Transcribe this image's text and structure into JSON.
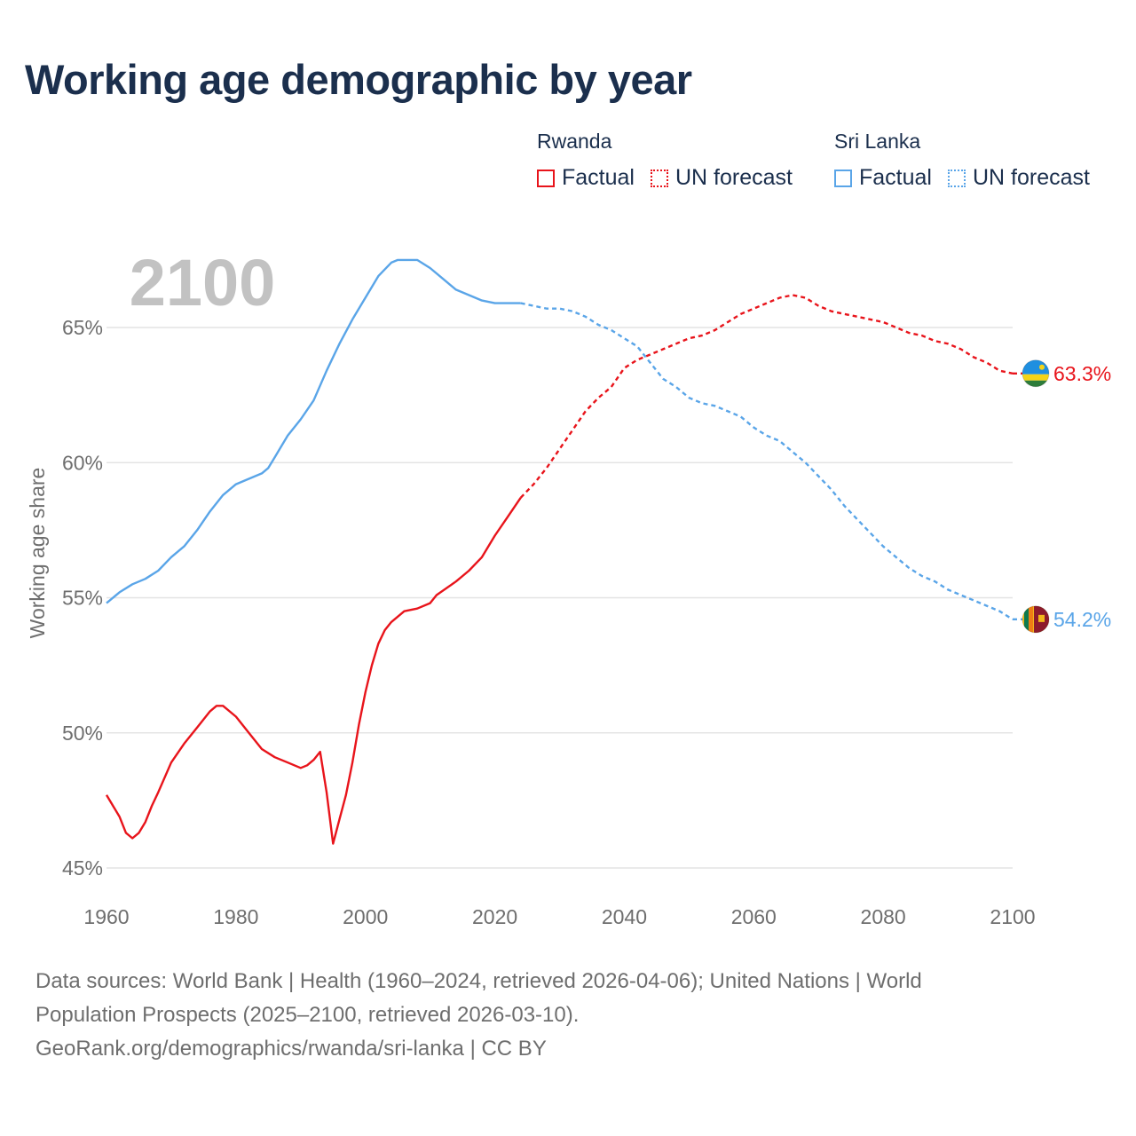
{
  "title": "Working age demographic by year",
  "legend": [
    {
      "country": "Rwanda",
      "color": "#e8141b",
      "items": [
        "Factual",
        "UN forecast"
      ]
    },
    {
      "country": "Sri Lanka",
      "color": "#5aa5e8",
      "items": [
        "Factual",
        "UN forecast"
      ]
    }
  ],
  "chart_data": {
    "type": "line",
    "current_year_label": "2100",
    "xlabel": "",
    "ylabel": "Working age share",
    "xlim": [
      1960,
      2100
    ],
    "ylim": [
      45,
      68
    ],
    "x_ticks": [
      {
        "value": 1960,
        "label": "1960"
      },
      {
        "value": 1980,
        "label": "1980"
      },
      {
        "value": 2000,
        "label": "2000"
      },
      {
        "value": 2020,
        "label": "2020"
      },
      {
        "value": 2040,
        "label": "2040"
      },
      {
        "value": 2060,
        "label": "2060"
      },
      {
        "value": 2080,
        "label": "2080"
      },
      {
        "value": 2100,
        "label": "2100"
      }
    ],
    "y_ticks": [
      {
        "value": 45,
        "label": "45%"
      },
      {
        "value": 50,
        "label": "50%"
      },
      {
        "value": 55,
        "label": "55%"
      },
      {
        "value": 60,
        "label": "60%"
      },
      {
        "value": 65,
        "label": "65%"
      }
    ],
    "factual_end_year": 2024,
    "series": [
      {
        "name": "Rwanda",
        "color": "#e8141b",
        "end_label": "63.3%",
        "points": [
          [
            1960,
            47.7
          ],
          [
            1962,
            46.9
          ],
          [
            1963,
            46.3
          ],
          [
            1964,
            46.1
          ],
          [
            1965,
            46.3
          ],
          [
            1966,
            46.7
          ],
          [
            1967,
            47.3
          ],
          [
            1968,
            47.8
          ],
          [
            1970,
            48.9
          ],
          [
            1972,
            49.6
          ],
          [
            1974,
            50.2
          ],
          [
            1976,
            50.8
          ],
          [
            1977,
            51.0
          ],
          [
            1978,
            51.0
          ],
          [
            1980,
            50.6
          ],
          [
            1982,
            50.0
          ],
          [
            1984,
            49.4
          ],
          [
            1986,
            49.1
          ],
          [
            1988,
            48.9
          ],
          [
            1990,
            48.7
          ],
          [
            1991,
            48.8
          ],
          [
            1992,
            49.0
          ],
          [
            1993,
            49.3
          ],
          [
            1994,
            47.8
          ],
          [
            1995,
            45.9
          ],
          [
            1996,
            46.8
          ],
          [
            1997,
            47.7
          ],
          [
            1998,
            48.9
          ],
          [
            1999,
            50.3
          ],
          [
            2000,
            51.5
          ],
          [
            2001,
            52.5
          ],
          [
            2002,
            53.3
          ],
          [
            2003,
            53.8
          ],
          [
            2004,
            54.1
          ],
          [
            2005,
            54.3
          ],
          [
            2006,
            54.5
          ],
          [
            2008,
            54.6
          ],
          [
            2010,
            54.8
          ],
          [
            2011,
            55.1
          ],
          [
            2014,
            55.6
          ],
          [
            2016,
            56.0
          ],
          [
            2018,
            56.5
          ],
          [
            2020,
            57.3
          ],
          [
            2022,
            58.0
          ],
          [
            2024,
            58.7
          ],
          [
            2026,
            59.2
          ],
          [
            2028,
            59.8
          ],
          [
            2030,
            60.5
          ],
          [
            2032,
            61.2
          ],
          [
            2034,
            61.9
          ],
          [
            2036,
            62.4
          ],
          [
            2038,
            62.8
          ],
          [
            2040,
            63.5
          ],
          [
            2042,
            63.8
          ],
          [
            2044,
            64.0
          ],
          [
            2046,
            64.2
          ],
          [
            2048,
            64.4
          ],
          [
            2050,
            64.6
          ],
          [
            2052,
            64.7
          ],
          [
            2054,
            64.9
          ],
          [
            2056,
            65.2
          ],
          [
            2058,
            65.5
          ],
          [
            2060,
            65.7
          ],
          [
            2062,
            65.9
          ],
          [
            2064,
            66.1
          ],
          [
            2066,
            66.2
          ],
          [
            2068,
            66.1
          ],
          [
            2070,
            65.8
          ],
          [
            2072,
            65.6
          ],
          [
            2074,
            65.5
          ],
          [
            2076,
            65.4
          ],
          [
            2078,
            65.3
          ],
          [
            2080,
            65.2
          ],
          [
            2082,
            65.0
          ],
          [
            2084,
            64.8
          ],
          [
            2086,
            64.7
          ],
          [
            2088,
            64.5
          ],
          [
            2090,
            64.4
          ],
          [
            2092,
            64.2
          ],
          [
            2094,
            63.9
          ],
          [
            2096,
            63.7
          ],
          [
            2098,
            63.4
          ],
          [
            2100,
            63.3
          ]
        ]
      },
      {
        "name": "Sri Lanka",
        "color": "#5aa5e8",
        "end_label": "54.2%",
        "points": [
          [
            1960,
            54.8
          ],
          [
            1962,
            55.2
          ],
          [
            1964,
            55.5
          ],
          [
            1966,
            55.7
          ],
          [
            1968,
            56.0
          ],
          [
            1970,
            56.5
          ],
          [
            1972,
            56.9
          ],
          [
            1974,
            57.5
          ],
          [
            1976,
            58.2
          ],
          [
            1978,
            58.8
          ],
          [
            1980,
            59.2
          ],
          [
            1982,
            59.4
          ],
          [
            1984,
            59.6
          ],
          [
            1985,
            59.8
          ],
          [
            1986,
            60.2
          ],
          [
            1988,
            61.0
          ],
          [
            1990,
            61.6
          ],
          [
            1992,
            62.3
          ],
          [
            1994,
            63.4
          ],
          [
            1996,
            64.4
          ],
          [
            1998,
            65.3
          ],
          [
            2000,
            66.1
          ],
          [
            2002,
            66.9
          ],
          [
            2004,
            67.4
          ],
          [
            2005,
            67.5
          ],
          [
            2008,
            67.5
          ],
          [
            2010,
            67.2
          ],
          [
            2012,
            66.8
          ],
          [
            2014,
            66.4
          ],
          [
            2016,
            66.2
          ],
          [
            2018,
            66.0
          ],
          [
            2020,
            65.9
          ],
          [
            2022,
            65.9
          ],
          [
            2024,
            65.9
          ],
          [
            2026,
            65.8
          ],
          [
            2028,
            65.7
          ],
          [
            2030,
            65.7
          ],
          [
            2032,
            65.6
          ],
          [
            2034,
            65.4
          ],
          [
            2036,
            65.1
          ],
          [
            2038,
            64.9
          ],
          [
            2040,
            64.6
          ],
          [
            2042,
            64.3
          ],
          [
            2044,
            63.7
          ],
          [
            2046,
            63.1
          ],
          [
            2048,
            62.8
          ],
          [
            2050,
            62.4
          ],
          [
            2052,
            62.2
          ],
          [
            2054,
            62.1
          ],
          [
            2056,
            61.9
          ],
          [
            2058,
            61.7
          ],
          [
            2060,
            61.3
          ],
          [
            2062,
            61.0
          ],
          [
            2064,
            60.8
          ],
          [
            2066,
            60.4
          ],
          [
            2068,
            60.0
          ],
          [
            2070,
            59.5
          ],
          [
            2072,
            59.0
          ],
          [
            2074,
            58.4
          ],
          [
            2076,
            57.9
          ],
          [
            2078,
            57.4
          ],
          [
            2080,
            56.9
          ],
          [
            2082,
            56.5
          ],
          [
            2084,
            56.1
          ],
          [
            2086,
            55.8
          ],
          [
            2088,
            55.6
          ],
          [
            2090,
            55.3
          ],
          [
            2092,
            55.1
          ],
          [
            2094,
            54.9
          ],
          [
            2096,
            54.7
          ],
          [
            2098,
            54.5
          ],
          [
            2100,
            54.2
          ]
        ]
      }
    ]
  },
  "footer": {
    "line1": "Data sources: World Bank | Health (1960–2024, retrieved 2026-04-06); United Nations | World",
    "line2": "Population Prospects (2025–2100, retrieved 2026-03-10).",
    "line3": "GeoRank.org/demographics/rwanda/sri-lanka | CC BY"
  }
}
